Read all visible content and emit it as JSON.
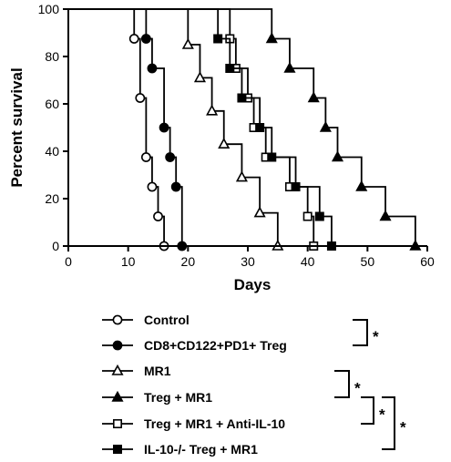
{
  "chart_data": {
    "type": "line",
    "style": "kaplan-meier step survival curves",
    "xlabel": "Days",
    "ylabel": "Percent survival",
    "xlim": [
      0,
      60
    ],
    "ylim": [
      0,
      100
    ],
    "x_ticks": [
      "0",
      "10",
      "20",
      "30",
      "40",
      "50",
      "60"
    ],
    "y_ticks": [
      "0",
      "20",
      "40",
      "60",
      "80",
      "100"
    ],
    "series": [
      {
        "name": "Control",
        "marker": "open-circle",
        "steps": [
          [
            0,
            100
          ],
          [
            11,
            87.5
          ],
          [
            12,
            62.5
          ],
          [
            13,
            37.5
          ],
          [
            14,
            25
          ],
          [
            15,
            12.5
          ],
          [
            16,
            0
          ]
        ]
      },
      {
        "name": "CD8+CD122+PD1+ Treg",
        "marker": "filled-circle",
        "steps": [
          [
            0,
            100
          ],
          [
            13,
            87.5
          ],
          [
            14,
            75
          ],
          [
            16,
            50
          ],
          [
            17,
            37.5
          ],
          [
            18,
            25
          ],
          [
            19,
            0
          ]
        ]
      },
      {
        "name": "MR1",
        "marker": "open-triangle",
        "steps": [
          [
            0,
            100
          ],
          [
            20,
            85
          ],
          [
            22,
            71
          ],
          [
            24,
            57
          ],
          [
            26,
            43
          ],
          [
            29,
            29
          ],
          [
            32,
            14
          ],
          [
            35,
            0
          ]
        ]
      },
      {
        "name": "Treg + MR1",
        "marker": "filled-triangle",
        "steps": [
          [
            0,
            100
          ],
          [
            34,
            87.5
          ],
          [
            37,
            75
          ],
          [
            41,
            62.5
          ],
          [
            43,
            50
          ],
          [
            45,
            37.5
          ],
          [
            49,
            25
          ],
          [
            53,
            12.5
          ],
          [
            58,
            0
          ]
        ]
      },
      {
        "name": "Treg + MR1 + Anti-IL-10",
        "marker": "open-square",
        "steps": [
          [
            0,
            100
          ],
          [
            27,
            87.5
          ],
          [
            28,
            75
          ],
          [
            30,
            62.5
          ],
          [
            31,
            50
          ],
          [
            33,
            37.5
          ],
          [
            37,
            25
          ],
          [
            40,
            12.5
          ],
          [
            41,
            0
          ]
        ]
      },
      {
        "name": "IL-10-/- Treg + MR1",
        "marker": "filled-square",
        "steps": [
          [
            0,
            100
          ],
          [
            25,
            87.5
          ],
          [
            27,
            75
          ],
          [
            29,
            62.5
          ],
          [
            32,
            50
          ],
          [
            34,
            37.5
          ],
          [
            38,
            25
          ],
          [
            42,
            12.5
          ],
          [
            44,
            0
          ]
        ]
      }
    ],
    "significance": [
      "*",
      "*",
      "*",
      "*"
    ]
  }
}
